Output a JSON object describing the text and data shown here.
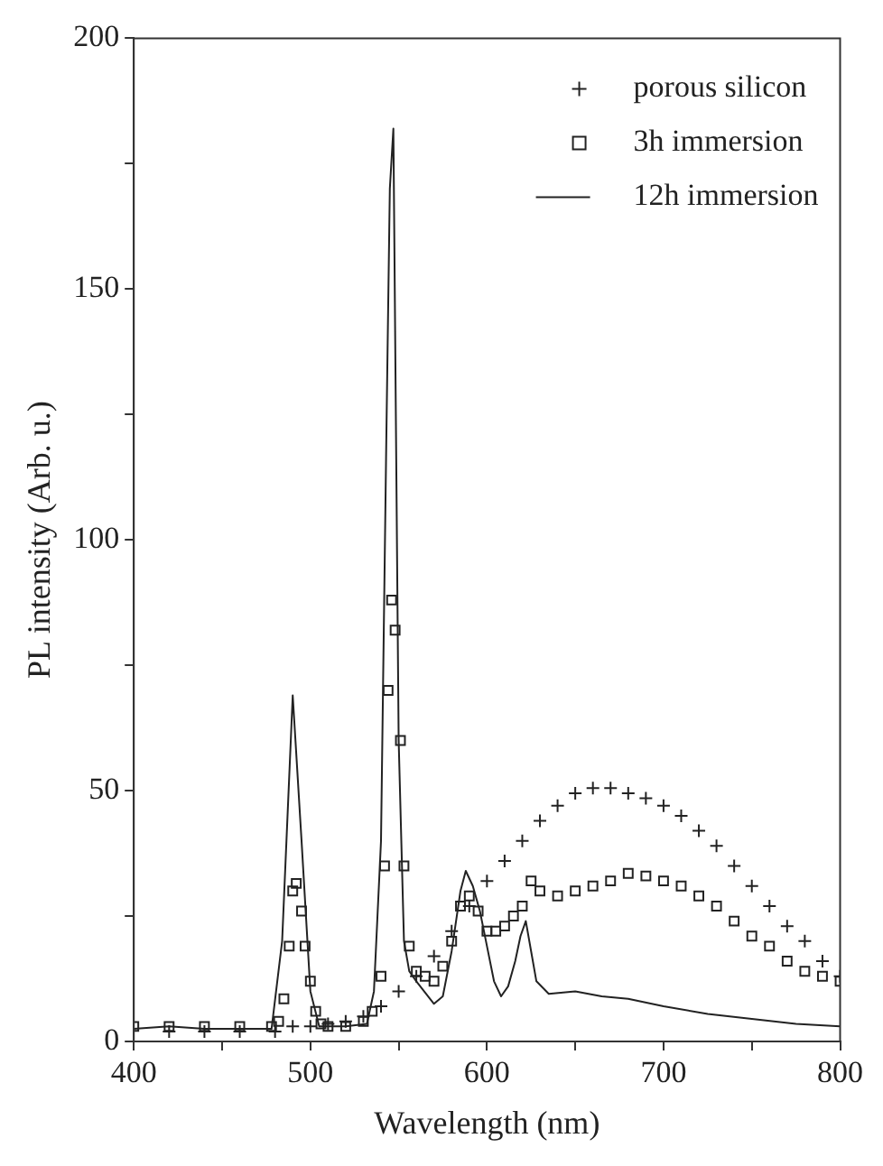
{
  "chart_data": {
    "type": "line",
    "xlabel": "Wavelength (nm)",
    "ylabel": "PL intensity (Arb. u.)",
    "xlim": [
      400,
      800
    ],
    "xticks": [
      400,
      {
        "value": 450,
        "label": null
      },
      500,
      {
        "value": 550,
        "label": null
      },
      600,
      {
        "value": 650,
        "label": null
      },
      700,
      {
        "value": 750,
        "label": null
      },
      800
    ],
    "ylim": [
      0,
      200
    ],
    "yticks": [
      0,
      {
        "value": 25,
        "label": null
      },
      50,
      {
        "value": 75,
        "label": null
      },
      100,
      {
        "value": 125,
        "label": null
      },
      150,
      {
        "value": 175,
        "label": null
      },
      200
    ],
    "grid": false,
    "legend": "top right",
    "series": [
      {
        "name": "porous silicon",
        "type": "scatter",
        "marker": "cross",
        "color": "#222222",
        "x": [
          420,
          440,
          460,
          480,
          490,
          500,
          510,
          520,
          530,
          540,
          550,
          560,
          570,
          580,
          590,
          600,
          610,
          620,
          630,
          640,
          650,
          660,
          670,
          680,
          690,
          700,
          710,
          720,
          730,
          740,
          750,
          760,
          770,
          780,
          790,
          800
        ],
        "values": [
          2,
          2,
          2,
          2,
          3,
          3,
          3.5,
          4,
          5,
          7,
          10,
          13,
          17,
          22,
          27,
          32,
          36,
          40,
          44,
          47,
          49.5,
          50.5,
          50.5,
          49.5,
          48.5,
          47,
          45,
          42,
          39,
          35,
          31,
          27,
          23,
          20,
          16,
          13
        ]
      },
      {
        "name": "3h immersion",
        "type": "scatter",
        "marker": "square",
        "color": "#222222",
        "x": [
          400,
          420,
          440,
          460,
          478,
          482,
          485,
          488,
          490,
          492,
          495,
          497,
          500,
          503,
          506,
          510,
          520,
          530,
          535,
          540,
          542,
          544,
          546,
          548,
          551,
          553,
          556,
          560,
          565,
          570,
          575,
          580,
          585,
          590,
          595,
          600,
          605,
          610,
          615,
          620,
          625,
          630,
          640,
          650,
          660,
          670,
          680,
          690,
          700,
          710,
          720,
          730,
          740,
          750,
          760,
          770,
          780,
          790,
          800
        ],
        "values": [
          3,
          3,
          3,
          3,
          3,
          4,
          8.5,
          19,
          30,
          31.5,
          26,
          19,
          12,
          6,
          3.5,
          3,
          3,
          4,
          6,
          13,
          35,
          70,
          88,
          82,
          60,
          35,
          19,
          14,
          13,
          12,
          15,
          20,
          27,
          29,
          26,
          22,
          22,
          23,
          25,
          27,
          32,
          30,
          29,
          30,
          31,
          32,
          33.5,
          33,
          32,
          31,
          29,
          27,
          24,
          21,
          19,
          16,
          14,
          13,
          12
        ]
      },
      {
        "name": "12h immersion",
        "type": "line",
        "marker": "none",
        "color": "#222222",
        "x": [
          400,
          420,
          440,
          460,
          478,
          484,
          490,
          495,
          500,
          505,
          520,
          532,
          536,
          540,
          543,
          545,
          547,
          550,
          553,
          556,
          560,
          570,
          575,
          580,
          585,
          588,
          592,
          596,
          600,
          604,
          608,
          612,
          616,
          619,
          622,
          625,
          628,
          635,
          650,
          665,
          680,
          700,
          725,
          750,
          775,
          800
        ],
        "values": [
          2.5,
          3,
          2.5,
          2.5,
          2.5,
          20,
          69,
          40,
          10,
          3,
          3,
          3.5,
          10,
          40,
          120,
          170,
          182,
          60,
          20,
          14,
          12,
          7.5,
          9,
          18,
          30,
          34,
          31,
          26,
          19,
          12,
          9,
          11,
          16,
          21,
          24,
          18,
          12,
          9.5,
          10,
          9,
          8.5,
          7,
          5.5,
          4.5,
          3.5,
          3
        ]
      }
    ]
  }
}
